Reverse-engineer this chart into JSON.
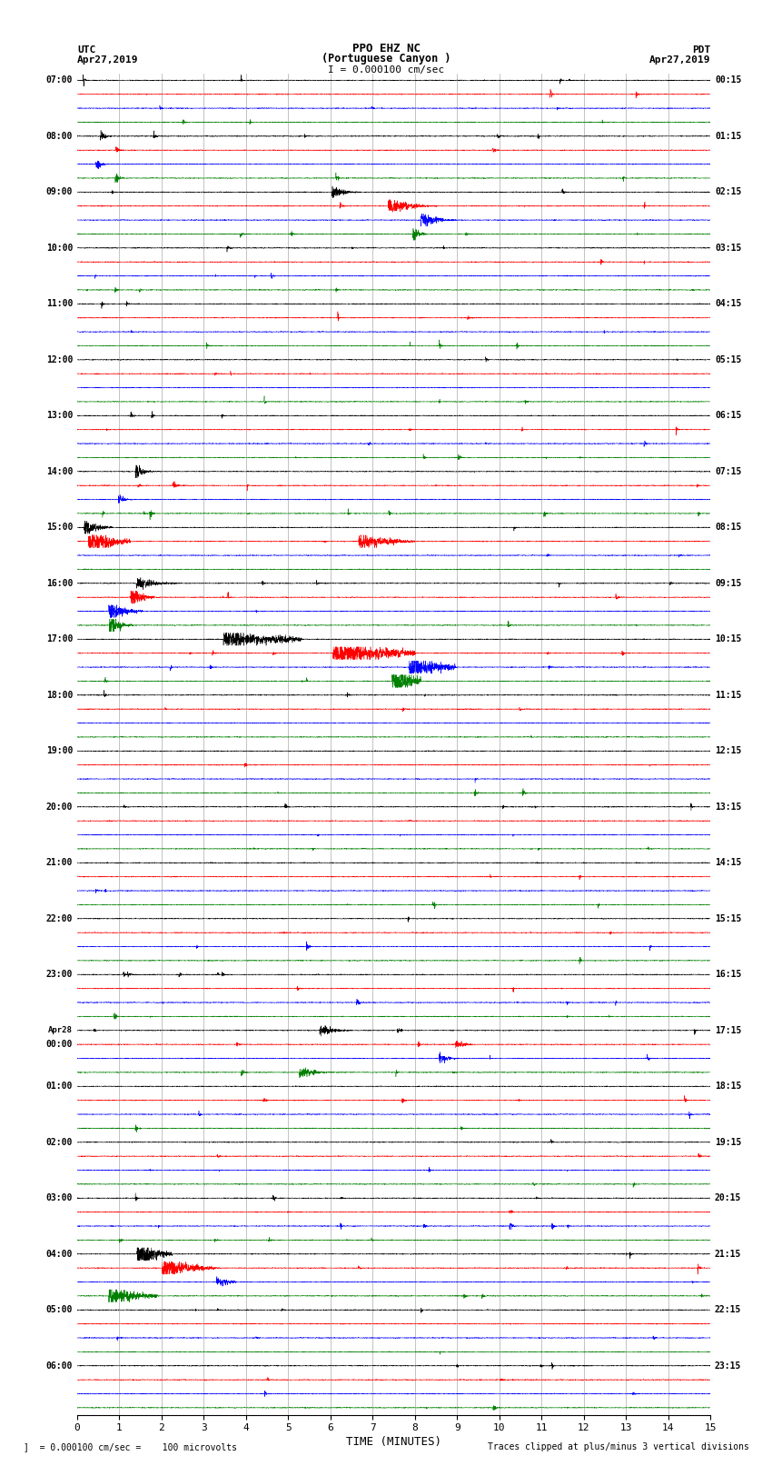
{
  "title_line1": "PPO EHZ NC",
  "title_line2": "(Portuguese Canyon )",
  "title_line3": "I = 0.000100 cm/sec",
  "utc_label": "UTC",
  "utc_date": "Apr27,2019",
  "pdt_label": "PDT",
  "pdt_date": "Apr27,2019",
  "xlabel": "TIME (MINUTES)",
  "footer_left": "= 0.000100 cm/sec =    100 microvolts",
  "footer_right": "Traces clipped at plus/minus 3 vertical divisions",
  "x_min": 0,
  "x_max": 15,
  "x_ticks": [
    0,
    1,
    2,
    3,
    4,
    5,
    6,
    7,
    8,
    9,
    10,
    11,
    12,
    13,
    14,
    15
  ],
  "left_times": [
    "07:00",
    "",
    "",
    "",
    "08:00",
    "",
    "",
    "",
    "09:00",
    "",
    "",
    "",
    "10:00",
    "",
    "",
    "",
    "11:00",
    "",
    "",
    "",
    "12:00",
    "",
    "",
    "",
    "13:00",
    "",
    "",
    "",
    "14:00",
    "",
    "",
    "",
    "15:00",
    "",
    "",
    "",
    "16:00",
    "",
    "",
    "",
    "17:00",
    "",
    "",
    "",
    "18:00",
    "",
    "",
    "",
    "19:00",
    "",
    "",
    "",
    "20:00",
    "",
    "",
    "",
    "21:00",
    "",
    "",
    "",
    "22:00",
    "",
    "",
    "",
    "23:00",
    "",
    "",
    "",
    "Apr28",
    "00:00",
    "",
    "",
    "01:00",
    "",
    "",
    "",
    "02:00",
    "",
    "",
    "",
    "03:00",
    "",
    "",
    "",
    "04:00",
    "",
    "",
    "",
    "05:00",
    "",
    "",
    "",
    "06:00",
    "",
    "",
    ""
  ],
  "right_times": [
    "00:15",
    "",
    "",
    "",
    "01:15",
    "",
    "",
    "",
    "02:15",
    "",
    "",
    "",
    "03:15",
    "",
    "",
    "",
    "04:15",
    "",
    "",
    "",
    "05:15",
    "",
    "",
    "",
    "06:15",
    "",
    "",
    "",
    "07:15",
    "",
    "",
    "",
    "08:15",
    "",
    "",
    "",
    "09:15",
    "",
    "",
    "",
    "10:15",
    "",
    "",
    "",
    "11:15",
    "",
    "",
    "",
    "12:15",
    "",
    "",
    "",
    "13:15",
    "",
    "",
    "",
    "14:15",
    "",
    "",
    "",
    "15:15",
    "",
    "",
    "",
    "16:15",
    "",
    "",
    "",
    "17:15",
    "",
    "",
    "",
    "18:15",
    "",
    "",
    "",
    "19:15",
    "",
    "",
    "",
    "20:15",
    "",
    "",
    "",
    "21:15",
    "",
    "",
    "",
    "22:15",
    "",
    "",
    "",
    "23:15",
    "",
    "",
    ""
  ],
  "colors": [
    "black",
    "red",
    "blue",
    "green"
  ],
  "n_rows": 96,
  "bg_color": "white",
  "seed": 42,
  "vlines_color": "#888888",
  "vlines_x": [
    1,
    2,
    3,
    4,
    5,
    6,
    7,
    8,
    9,
    10,
    11,
    12,
    13,
    14
  ]
}
